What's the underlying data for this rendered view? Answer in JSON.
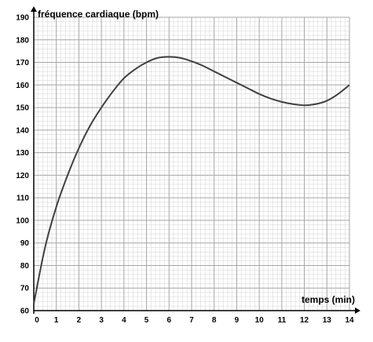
{
  "chart_data": {
    "type": "line",
    "title": "",
    "xlabel": "temps (min)",
    "ylabel": "fréquence cardiaque (bpm)",
    "xlim": [
      0,
      14
    ],
    "ylim": [
      60,
      190
    ],
    "x_ticks": [
      0,
      1,
      2,
      3,
      4,
      5,
      6,
      7,
      8,
      9,
      10,
      11,
      12,
      13,
      14
    ],
    "y_ticks": [
      60,
      70,
      80,
      90,
      100,
      110,
      120,
      130,
      140,
      150,
      160,
      170,
      180,
      190
    ],
    "grid": true,
    "series": [
      {
        "x": [
          0,
          0.5,
          1,
          1.5,
          2,
          2.5,
          3,
          3.5,
          4,
          4.5,
          5,
          5.5,
          6,
          6.5,
          7,
          7.5,
          8,
          8.5,
          9,
          9.5,
          10,
          10.5,
          11,
          11.5,
          12,
          12.5,
          13,
          13.5,
          14
        ],
        "y": [
          63,
          88,
          106,
          120,
          132,
          142,
          150,
          157,
          163,
          167,
          170,
          172,
          172.5,
          172,
          170.5,
          168.5,
          166,
          163.5,
          161,
          158.5,
          156,
          154,
          152.5,
          151.5,
          151,
          151.5,
          153,
          156,
          160
        ]
      }
    ],
    "colors": {
      "line": "#404040",
      "grid_minor": "#d9d9d9",
      "grid_major": "#a6a6a6",
      "axis": "#000000"
    }
  }
}
